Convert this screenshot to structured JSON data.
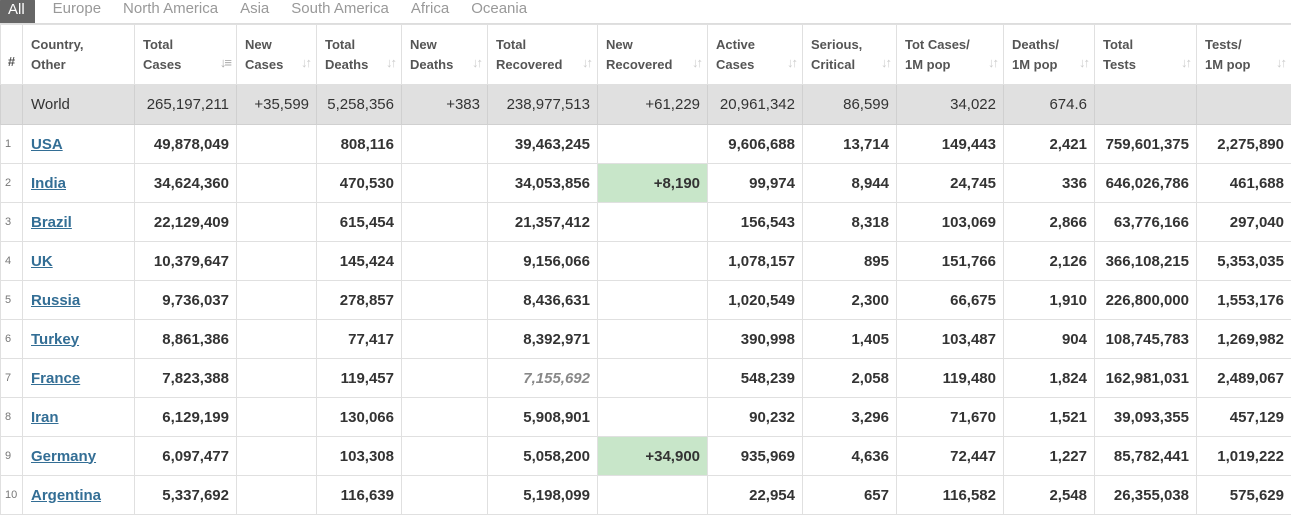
{
  "tabs": [
    {
      "label": "All",
      "active": true
    },
    {
      "label": "Europe",
      "active": false
    },
    {
      "label": "North America",
      "active": false
    },
    {
      "label": "Asia",
      "active": false
    },
    {
      "label": "South America",
      "active": false
    },
    {
      "label": "Africa",
      "active": false
    },
    {
      "label": "Oceania",
      "active": false
    }
  ],
  "colors": {
    "active_tab_bg": "#666666",
    "world_row_bg": "#e0e0e0",
    "new_recovered_highlight": "#c8e6c9",
    "country_link": "#336e95"
  },
  "headers": [
    {
      "line1": "#",
      "line2": ""
    },
    {
      "line1": "Country,",
      "line2": "Other"
    },
    {
      "line1": "Total",
      "line2": "Cases"
    },
    {
      "line1": "New",
      "line2": "Cases"
    },
    {
      "line1": "Total",
      "line2": "Deaths"
    },
    {
      "line1": "New",
      "line2": "Deaths"
    },
    {
      "line1": "Total",
      "line2": "Recovered"
    },
    {
      "line1": "New",
      "line2": "Recovered"
    },
    {
      "line1": "Active",
      "line2": "Cases"
    },
    {
      "line1": "Serious,",
      "line2": "Critical"
    },
    {
      "line1": "Tot Cases/",
      "line2": "1M pop"
    },
    {
      "line1": "Deaths/",
      "line2": "1M pop"
    },
    {
      "line1": "Total",
      "line2": "Tests"
    },
    {
      "line1": "Tests/",
      "line2": "1M pop"
    }
  ],
  "sort_icon": "sort-arrows-icon",
  "world": [
    "",
    "World",
    "265,197,211",
    "+35,599",
    "5,258,356",
    "+383",
    "238,977,513",
    "+61,229",
    "20,961,342",
    "86,599",
    "34,022",
    "674.6",
    "",
    ""
  ],
  "rows": [
    [
      "1",
      "USA",
      "49,878,049",
      "",
      "808,116",
      "",
      "39,463,245",
      "",
      "9,606,688",
      "13,714",
      "149,443",
      "2,421",
      "759,601,375",
      "2,275,890"
    ],
    [
      "2",
      "India",
      "34,624,360",
      "",
      "470,530",
      "",
      "34,053,856",
      "+8,190",
      "99,974",
      "8,944",
      "24,745",
      "336",
      "646,026,786",
      "461,688"
    ],
    [
      "3",
      "Brazil",
      "22,129,409",
      "",
      "615,454",
      "",
      "21,357,412",
      "",
      "156,543",
      "8,318",
      "103,069",
      "2,866",
      "63,776,166",
      "297,040"
    ],
    [
      "4",
      "UK",
      "10,379,647",
      "",
      "145,424",
      "",
      "9,156,066",
      "",
      "1,078,157",
      "895",
      "151,766",
      "2,126",
      "366,108,215",
      "5,353,035"
    ],
    [
      "5",
      "Russia",
      "9,736,037",
      "",
      "278,857",
      "",
      "8,436,631",
      "",
      "1,020,549",
      "2,300",
      "66,675",
      "1,910",
      "226,800,000",
      "1,553,176"
    ],
    [
      "6",
      "Turkey",
      "8,861,386",
      "",
      "77,417",
      "",
      "8,392,971",
      "",
      "390,998",
      "1,405",
      "103,487",
      "904",
      "108,745,783",
      "1,269,982"
    ],
    [
      "7",
      "France",
      "7,823,388",
      "",
      "119,457",
      "",
      "7,155,692",
      "",
      "548,239",
      "2,058",
      "119,480",
      "1,824",
      "162,981,031",
      "2,489,067"
    ],
    [
      "8",
      "Iran",
      "6,129,199",
      "",
      "130,066",
      "",
      "5,908,901",
      "",
      "90,232",
      "3,296",
      "71,670",
      "1,521",
      "39,093,355",
      "457,129"
    ],
    [
      "9",
      "Germany",
      "6,097,477",
      "",
      "103,308",
      "",
      "5,058,200",
      "+34,900",
      "935,969",
      "4,636",
      "72,447",
      "1,227",
      "85,782,441",
      "1,019,222"
    ],
    [
      "10",
      "Argentina",
      "5,337,692",
      "",
      "116,639",
      "",
      "5,198,099",
      "",
      "22,954",
      "657",
      "116,582",
      "2,548",
      "26,355,038",
      "575,629"
    ]
  ]
}
